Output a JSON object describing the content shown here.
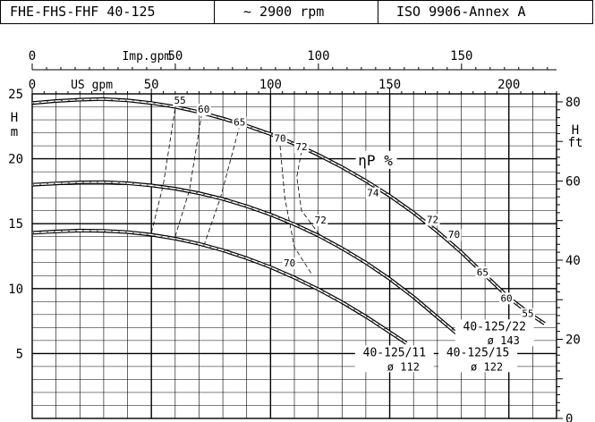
{
  "header": {
    "model": "FHE-FHS-FHF 40-125",
    "speed": "~ 2900 rpm",
    "standard": "ISO 9906-Annex A"
  },
  "chart_data": {
    "type": "line",
    "title": "",
    "axes": {
      "x_usgpm": {
        "label": "US gpm",
        "ticks": [
          0,
          50,
          100,
          150,
          200
        ],
        "range": [
          0,
          220
        ]
      },
      "x_impgpm": {
        "label": "Imp.gpm",
        "ticks": [
          0,
          50,
          100,
          150
        ],
        "range": [
          0,
          183.2
        ]
      },
      "y_m": {
        "label": "H",
        "unit": "m",
        "ticks": [
          5,
          10,
          15,
          20,
          25
        ],
        "range": [
          0,
          25
        ]
      },
      "y_ft": {
        "label": "H",
        "unit": "ft",
        "ticks": [
          0,
          20,
          40,
          60,
          80
        ],
        "range": [
          0,
          82.02
        ]
      }
    },
    "grid": true,
    "efficiency_label": "ηP %",
    "series": [
      {
        "name": "40-125/22",
        "diameter": "ø 143",
        "x": [
          0,
          10,
          20,
          30,
          40,
          50,
          60,
          70,
          80,
          90,
          100,
          110,
          120,
          130,
          140,
          150,
          160,
          170,
          180,
          190,
          200,
          210,
          215
        ],
        "y": [
          24.3,
          24.45,
          24.55,
          24.6,
          24.5,
          24.3,
          24.0,
          23.6,
          23.1,
          22.55,
          21.9,
          21.15,
          20.3,
          19.35,
          18.3,
          17.15,
          15.85,
          14.4,
          12.8,
          11.05,
          9.3,
          7.9,
          7.3
        ]
      },
      {
        "name": "40-125/15",
        "diameter": "ø 122",
        "x": [
          0,
          10,
          20,
          30,
          40,
          50,
          60,
          70,
          80,
          90,
          100,
          110,
          120,
          130,
          140,
          150,
          160,
          170,
          180,
          185
        ],
        "y": [
          18.0,
          18.1,
          18.18,
          18.2,
          18.12,
          17.95,
          17.7,
          17.35,
          16.9,
          16.35,
          15.7,
          14.95,
          14.1,
          13.1,
          12.0,
          10.75,
          9.35,
          7.8,
          6.25,
          5.6
        ]
      },
      {
        "name": "40-125/11",
        "diameter": "ø 112",
        "x": [
          0,
          10,
          20,
          30,
          40,
          50,
          60,
          70,
          80,
          90,
          100,
          110,
          120,
          130,
          140,
          150,
          157
        ],
        "y": [
          14.3,
          14.4,
          14.47,
          14.45,
          14.35,
          14.15,
          13.85,
          13.45,
          12.95,
          12.35,
          11.65,
          10.85,
          9.95,
          8.95,
          7.85,
          6.65,
          5.8
        ]
      }
    ],
    "iso_efficiency": [
      {
        "label": "55",
        "points": [
          [
            50,
            14.3
          ],
          [
            55,
            18.0
          ],
          [
            60,
            23.9
          ]
        ]
      },
      {
        "label": "60",
        "points": [
          [
            60,
            14.0
          ],
          [
            66,
            17.6
          ],
          [
            71,
            23.3
          ]
        ]
      },
      {
        "label": "65",
        "points": [
          [
            72,
            13.3
          ],
          [
            79,
            17.0
          ],
          [
            87,
            22.5
          ]
        ]
      },
      {
        "label": "70",
        "points": [
          [
            104,
            21.0
          ],
          [
            106,
            17.0
          ],
          [
            110,
            13.2
          ],
          [
            117,
            11.2
          ]
        ]
      },
      {
        "label": "72",
        "points": [
          [
            113,
            20.6
          ],
          [
            111,
            18.6
          ],
          [
            113,
            16.0
          ],
          [
            122,
            13.8
          ]
        ]
      },
      {
        "label": "74",
        "points": [
          [
            154,
            17.5
          ]
        ]
      }
    ],
    "efficiency_labels": [
      {
        "text": "55",
        "x": 62,
        "y": 24.25
      },
      {
        "text": "60",
        "x": 72,
        "y": 23.55
      },
      {
        "text": "65",
        "x": 87,
        "y": 22.55
      },
      {
        "text": "70",
        "x": 104,
        "y": 21.3
      },
      {
        "text": "72",
        "x": 113,
        "y": 20.65
      },
      {
        "text": "74",
        "x": 143,
        "y": 17.1
      },
      {
        "text": "72",
        "x": 168,
        "y": 15.05
      },
      {
        "text": "70",
        "x": 177,
        "y": 13.9
      },
      {
        "text": "65",
        "x": 189,
        "y": 11.0
      },
      {
        "text": "60",
        "x": 199,
        "y": 9.0
      },
      {
        "text": "55",
        "x": 208,
        "y": 7.8
      },
      {
        "text": "72",
        "x": 121,
        "y": 15.0
      },
      {
        "text": "70",
        "x": 108,
        "y": 11.7
      }
    ],
    "model_labels": [
      {
        "name": "40-125/22",
        "diameter": "ø 143",
        "x": 194,
        "y": 6.8,
        "dx": 194,
        "dy": 5.7
      },
      {
        "name": "40-125/15",
        "diameter": "ø 122",
        "x": 187,
        "y": 4.8,
        "dx": 187,
        "dy": 3.7
      },
      {
        "name": "40-125/11",
        "diameter": "ø 112",
        "x": 152,
        "y": 4.8,
        "dx": 152,
        "dy": 3.7
      }
    ]
  }
}
